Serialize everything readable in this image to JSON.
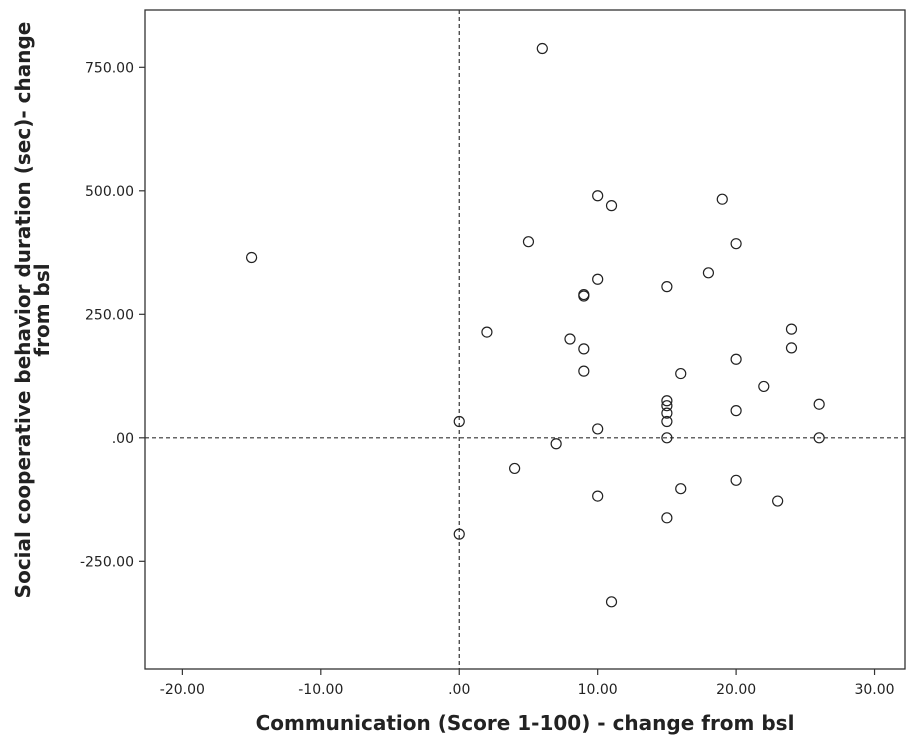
{
  "chart_data": {
    "type": "scatter",
    "xlabel": "Communication (Score 1-100) - change from bsl",
    "ylabel_lines": [
      "Social cooperative behavior duration (sec)- change",
      "from bsl"
    ],
    "xlim": [
      -22.7,
      32.2
    ],
    "ylim": [
      -468,
      866
    ],
    "x_ticks": [
      -20,
      -10,
      0,
      10,
      20,
      30
    ],
    "x_tick_labels": [
      "-20.00",
      "-10.00",
      ".00",
      "10.00",
      "20.00",
      "30.00"
    ],
    "y_ticks": [
      -250,
      0,
      250,
      500,
      750
    ],
    "y_tick_labels": [
      "-250.00",
      ".00",
      "250.00",
      "500.00",
      "750.00"
    ],
    "reference_lines": {
      "x": 0,
      "y": 0,
      "style": "dashed"
    },
    "grid": false,
    "legend": "none",
    "marker": "open-circle",
    "points": [
      {
        "x": -15,
        "y": 365
      },
      {
        "x": 0,
        "y": 33
      },
      {
        "x": 0,
        "y": -195
      },
      {
        "x": 2,
        "y": 214
      },
      {
        "x": 4,
        "y": -62
      },
      {
        "x": 5,
        "y": 397
      },
      {
        "x": 6,
        "y": 788
      },
      {
        "x": 7,
        "y": -12
      },
      {
        "x": 8,
        "y": 200
      },
      {
        "x": 9,
        "y": 287
      },
      {
        "x": 9,
        "y": 290
      },
      {
        "x": 9,
        "y": 180
      },
      {
        "x": 9,
        "y": 135
      },
      {
        "x": 10,
        "y": 490
      },
      {
        "x": 10,
        "y": 321
      },
      {
        "x": 10,
        "y": 18
      },
      {
        "x": 10,
        "y": -118
      },
      {
        "x": 11,
        "y": 470
      },
      {
        "x": 11,
        "y": -332
      },
      {
        "x": 15,
        "y": 306
      },
      {
        "x": 15,
        "y": 75
      },
      {
        "x": 15,
        "y": 65
      },
      {
        "x": 15,
        "y": 50
      },
      {
        "x": 15,
        "y": 33
      },
      {
        "x": 15,
        "y": 0
      },
      {
        "x": 15,
        "y": -162
      },
      {
        "x": 16,
        "y": 130
      },
      {
        "x": 16,
        "y": -103
      },
      {
        "x": 18,
        "y": 334
      },
      {
        "x": 19,
        "y": 483
      },
      {
        "x": 20,
        "y": 393
      },
      {
        "x": 20,
        "y": 159
      },
      {
        "x": 20,
        "y": 55
      },
      {
        "x": 20,
        "y": -86
      },
      {
        "x": 22,
        "y": 104
      },
      {
        "x": 23,
        "y": -128
      },
      {
        "x": 24,
        "y": 220
      },
      {
        "x": 24,
        "y": 182
      },
      {
        "x": 26,
        "y": 68
      },
      {
        "x": 26,
        "y": 0
      }
    ]
  }
}
